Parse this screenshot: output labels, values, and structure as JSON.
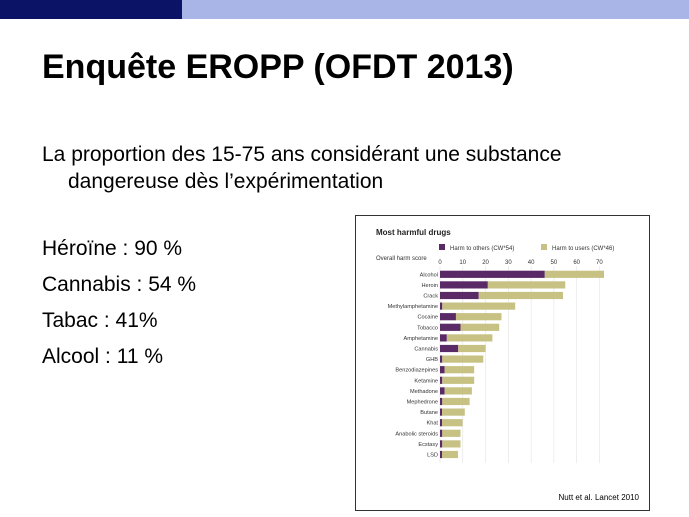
{
  "slide": {
    "title": "Enquête EROPP (OFDT 2013)",
    "intro_line1": "La proportion des 15-75 ans considérant une substance",
    "intro_line2": "dangereuse dès l’expérimentation",
    "stats": [
      "Héroïne :  90 %",
      "Cannabis :  54 %",
      "Tabac : 41%",
      "Alcool :  11 %"
    ]
  },
  "figure": {
    "caption": "Nutt et al. Lancet 2010"
  },
  "colors": {
    "header_dark": "#0b1366",
    "header_light": "#a9b5e6",
    "harm_others": "#5a2a66",
    "harm_users": "#c8c184"
  },
  "chart_data": {
    "type": "bar",
    "orientation": "horizontal",
    "stacked": true,
    "title": "Most harmful drugs",
    "xlabel": "Overall harm score",
    "xlim": [
      0,
      72
    ],
    "xticks": [
      0,
      10,
      20,
      30,
      40,
      50,
      60,
      70
    ],
    "categories": [
      "Alcohol",
      "Heroin",
      "Crack",
      "Methylamphetamine",
      "Cocaine",
      "Tobacco",
      "Amphetamine",
      "Cannabis",
      "GHB",
      "Benzodiazepines",
      "Ketamine",
      "Methadone",
      "Mephedrone",
      "Butane",
      "Khat",
      "Anabolic steroids",
      "Ecstasy",
      "LSD"
    ],
    "series": [
      {
        "name": "Harm to others (CW*54)",
        "values": [
          46,
          21,
          17,
          1,
          7,
          9,
          3,
          8,
          1,
          2,
          1,
          2,
          1,
          0,
          0,
          1,
          1,
          0
        ]
      },
      {
        "name": "Harm to users (CW*46)",
        "values": [
          26,
          34,
          37,
          32,
          20,
          17,
          20,
          12,
          18,
          13,
          14,
          12,
          12,
          10,
          9,
          8,
          8,
          7
        ]
      }
    ]
  }
}
